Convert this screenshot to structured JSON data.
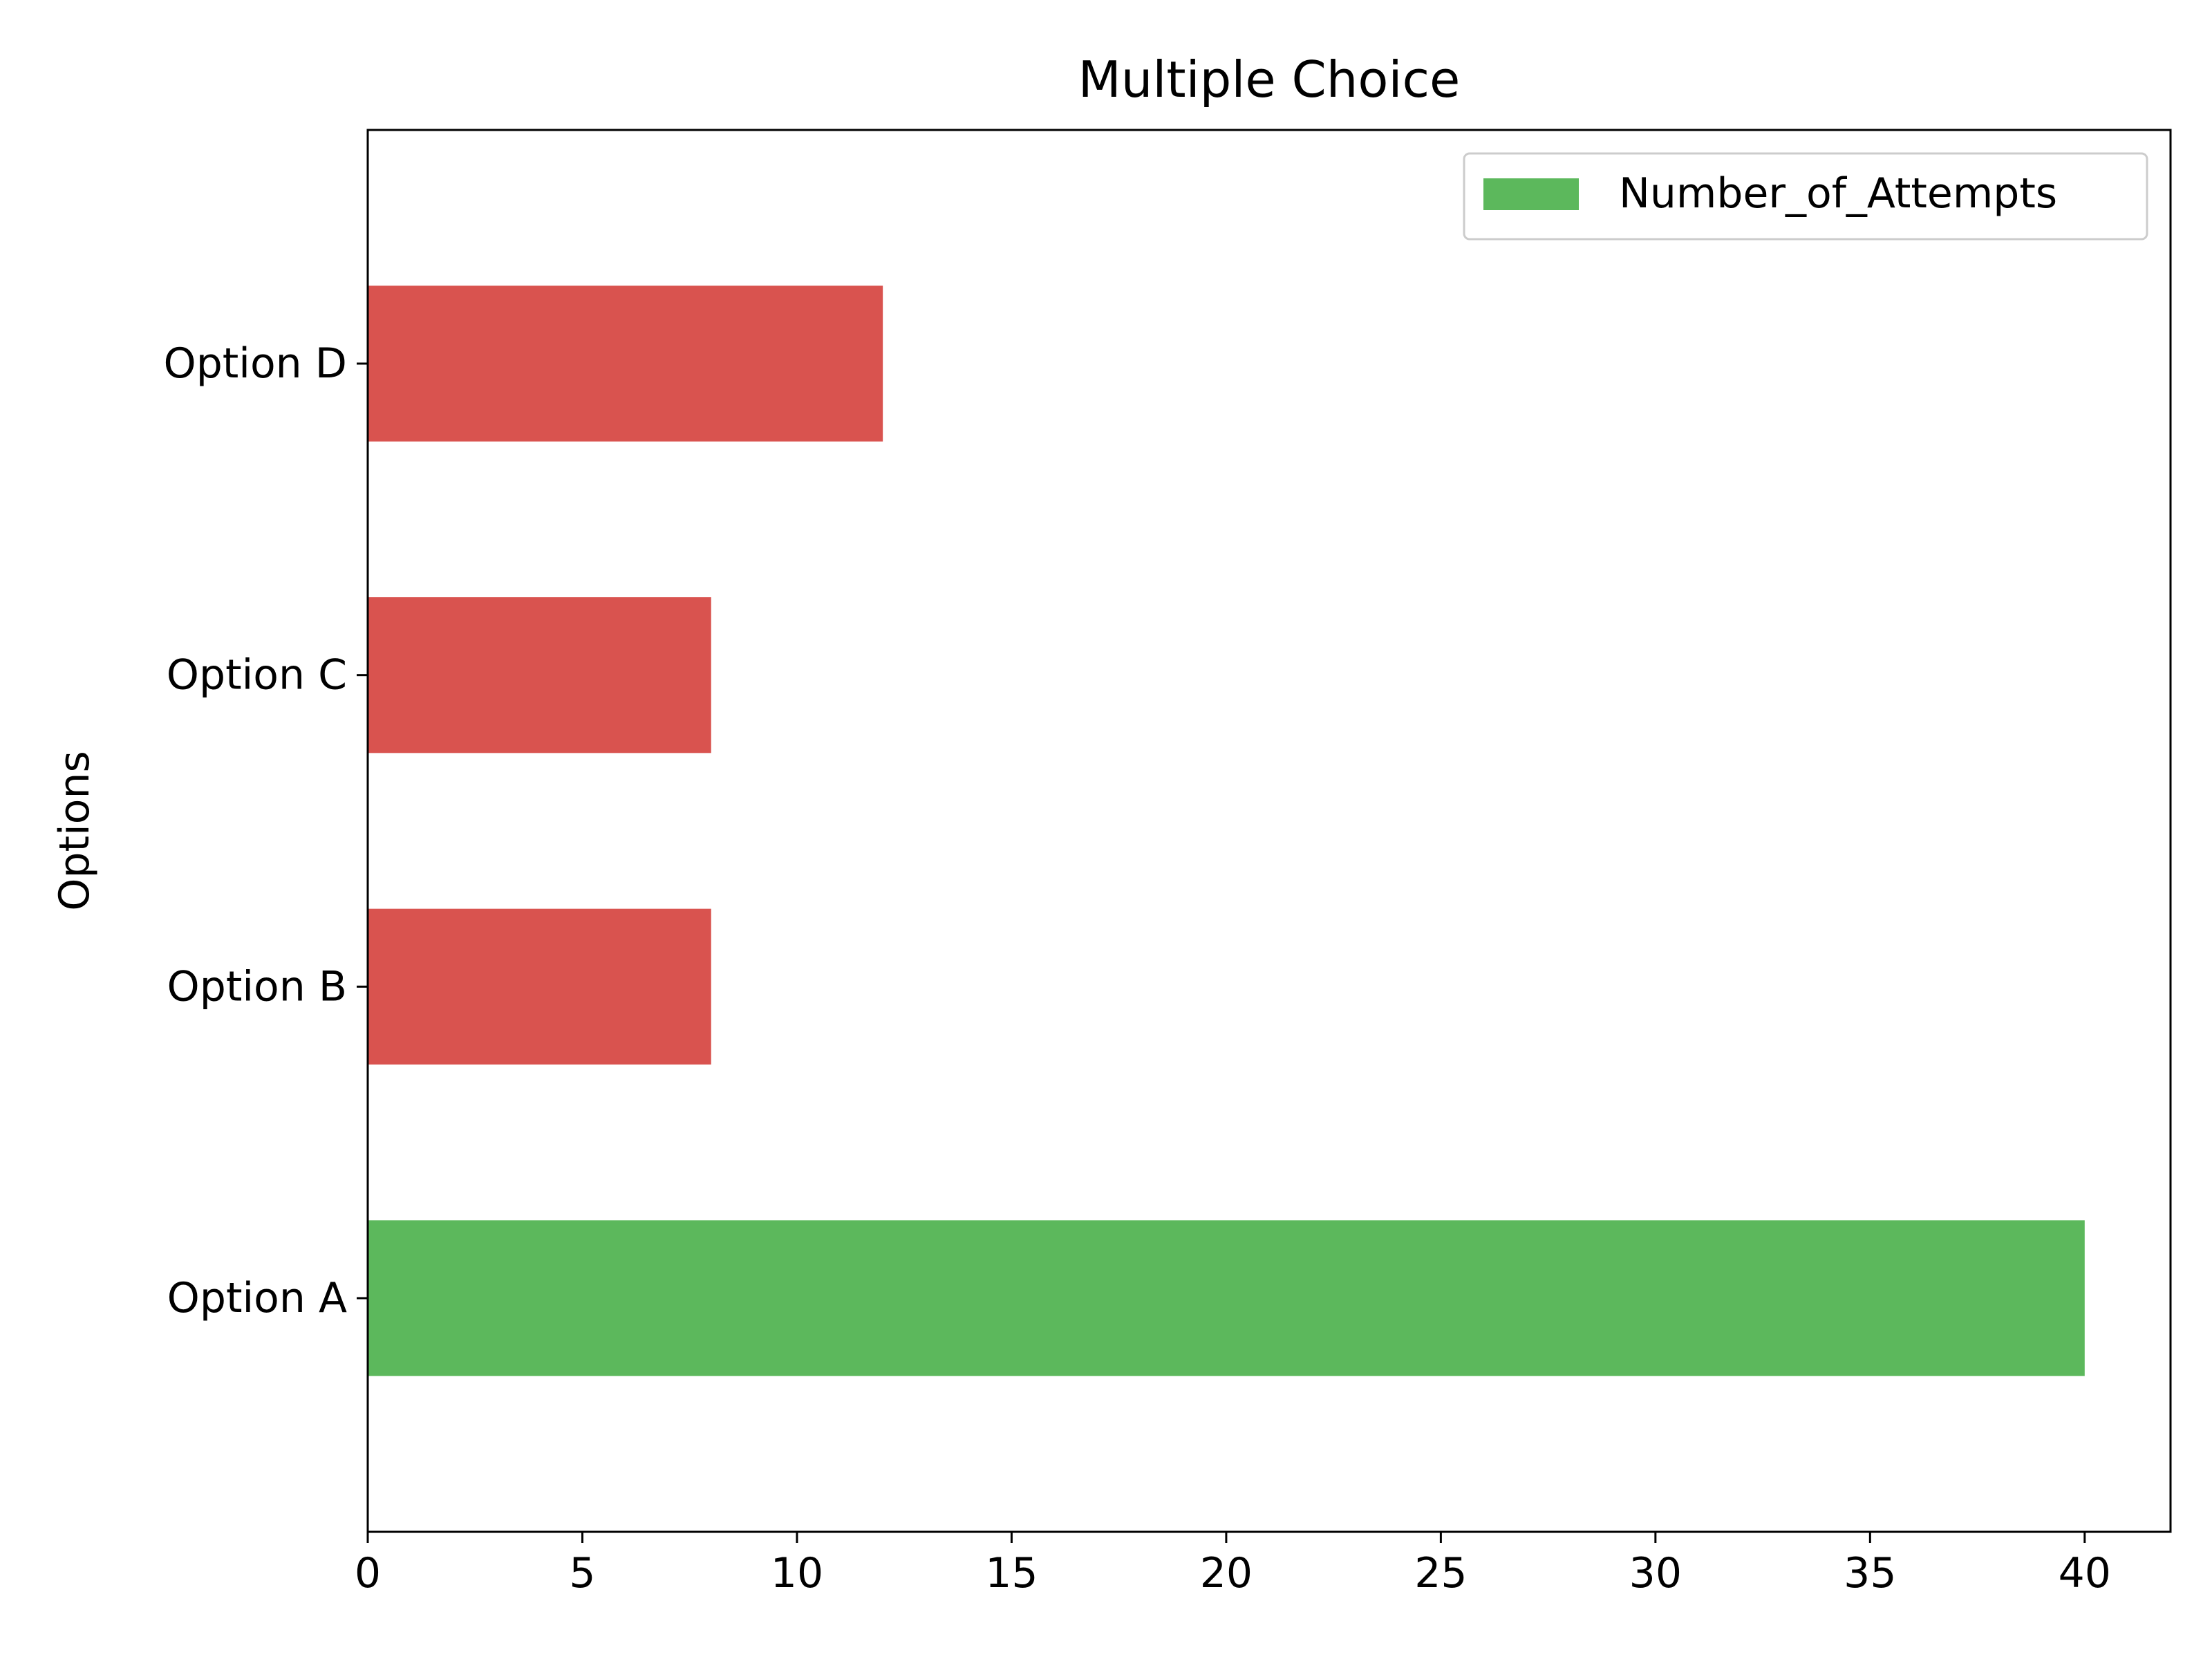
{
  "chart_data": {
    "type": "bar",
    "orientation": "horizontal",
    "title": "Multiple Choice",
    "xlabel": "",
    "ylabel": "Options",
    "categories": [
      "Option A",
      "Option B",
      "Option C",
      "Option D"
    ],
    "values": [
      40,
      8,
      8,
      12
    ],
    "bar_colors": [
      "#5cb85c",
      "#d9534f",
      "#d9534f",
      "#d9534f"
    ],
    "xlim": [
      0,
      42
    ],
    "xticks": [
      0,
      5,
      10,
      15,
      20,
      25,
      30,
      35,
      40
    ],
    "grid": false,
    "legend": {
      "placement": "top-right",
      "entries": [
        {
          "label": "Number_of_Attempts",
          "color": "#5cb85c"
        }
      ]
    }
  }
}
